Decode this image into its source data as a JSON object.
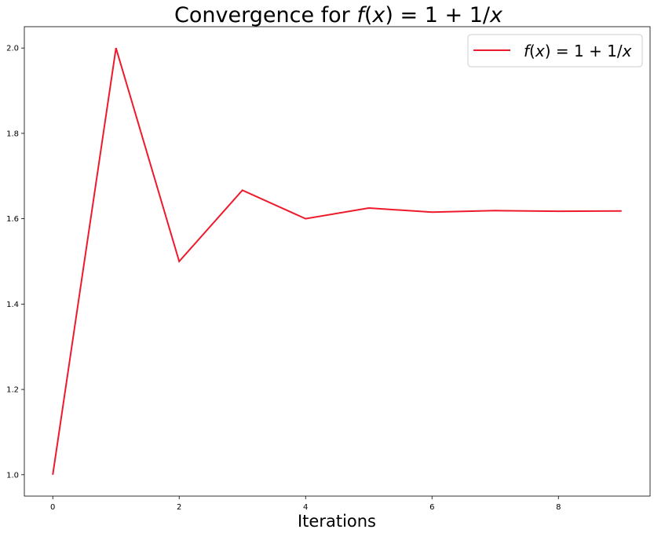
{
  "chart_data": {
    "type": "line",
    "title_prefix": "Convergence for ",
    "formula": {
      "f": "f",
      "open": "(",
      "x": "x",
      "close": ")",
      "eq": " = 1 + 1/",
      "x2": "x"
    },
    "xlabel": "Iterations",
    "ylabel": "",
    "xlim": [
      -0.45,
      9.45
    ],
    "ylim": [
      0.95,
      2.05
    ],
    "xticks": [
      "0",
      "2",
      "4",
      "6",
      "8"
    ],
    "yticks": [
      "1.0",
      "1.2",
      "1.4",
      "1.6",
      "1.8",
      "2.0"
    ],
    "grid": false,
    "legend_position": "top-right",
    "series": [
      {
        "name": "f(x) = 1 + 1/x",
        "color": "#ee1a2c",
        "x": [
          0,
          1,
          2,
          3,
          4,
          5,
          6,
          7,
          8,
          9
        ],
        "y": [
          1.0,
          2.0,
          1.5,
          1.6667,
          1.6,
          1.625,
          1.6154,
          1.619,
          1.6176,
          1.6182
        ]
      }
    ]
  }
}
